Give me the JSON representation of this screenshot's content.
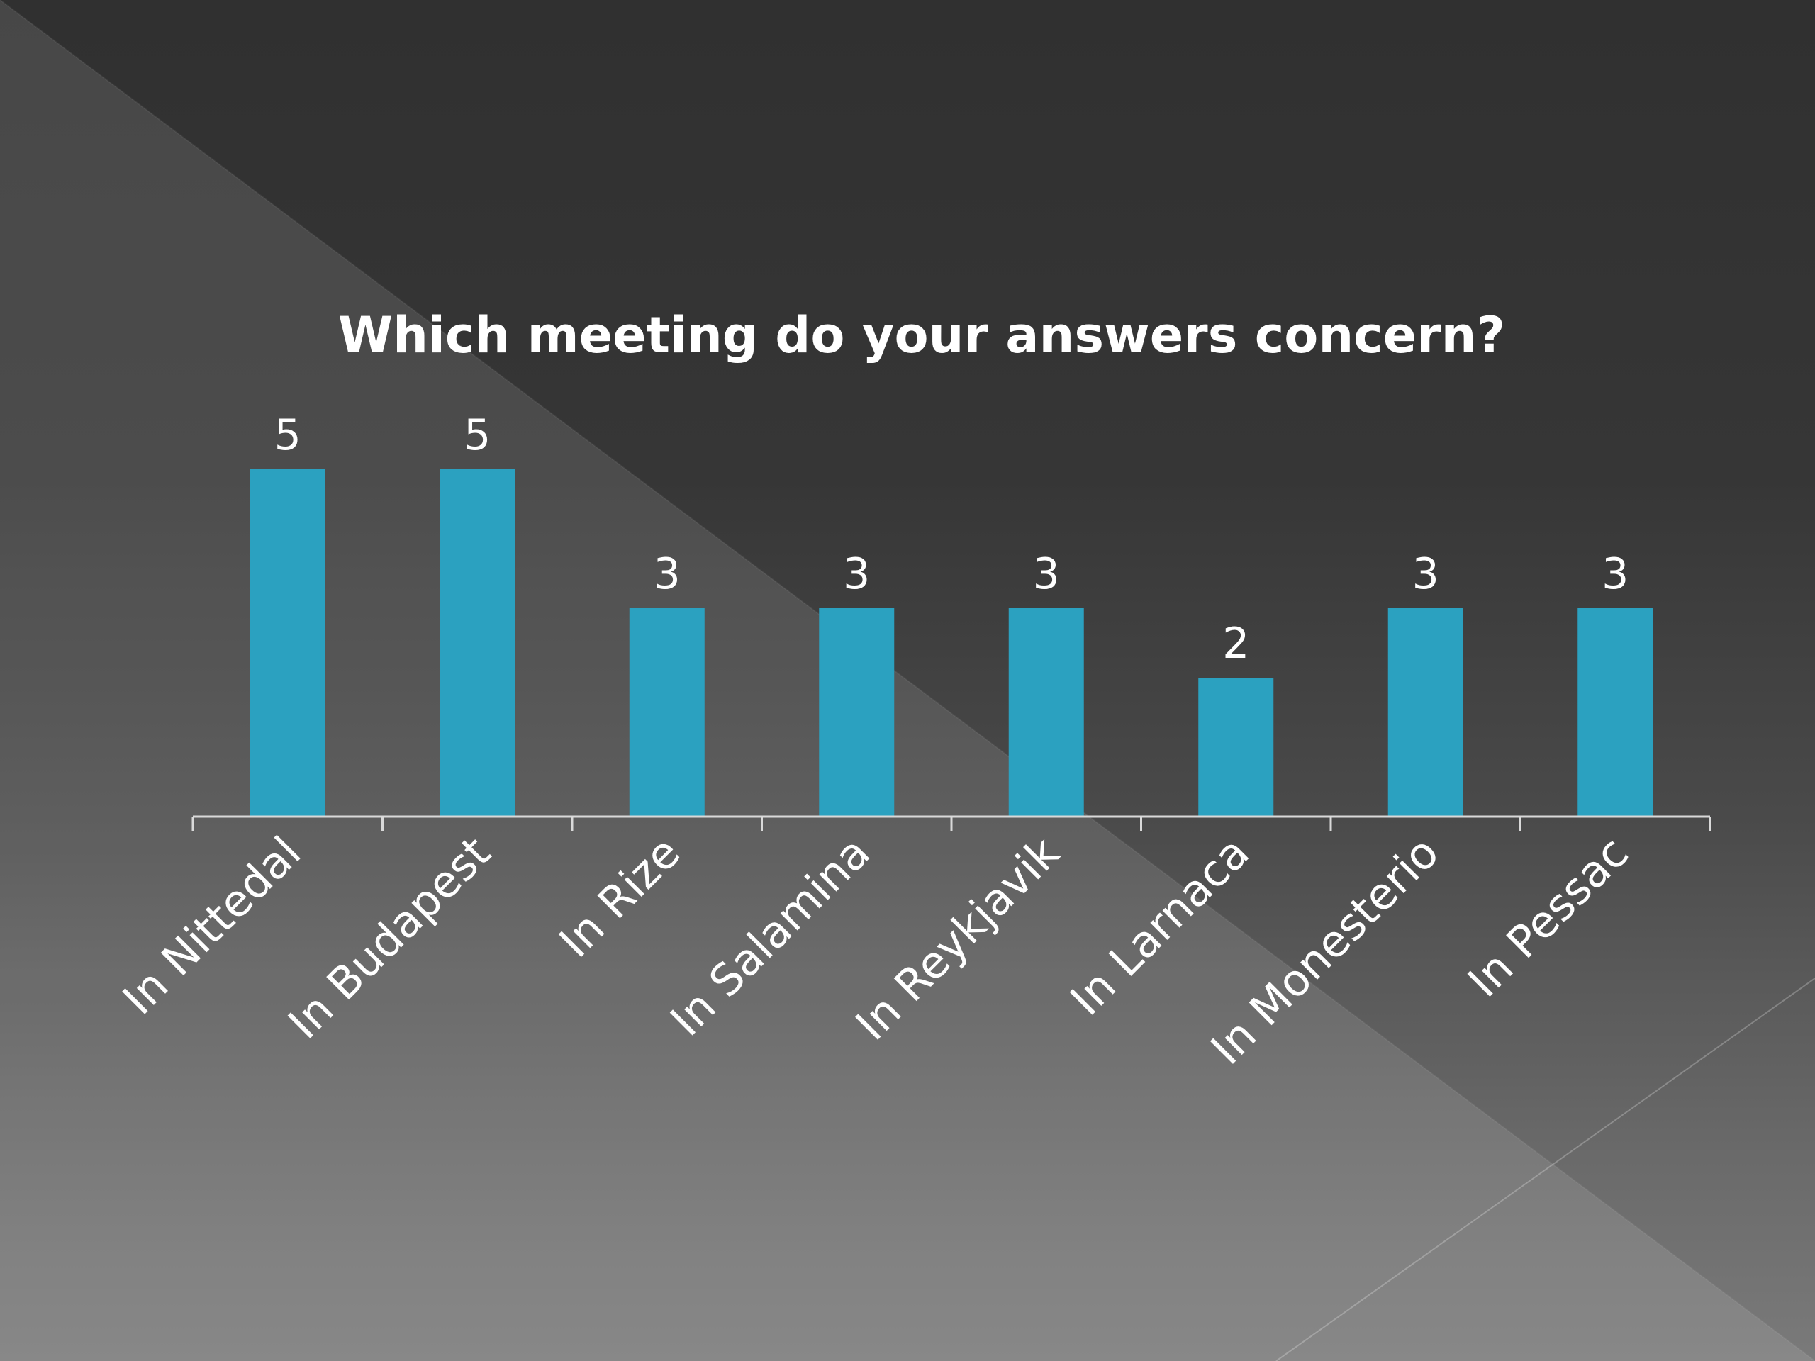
{
  "chart_data": {
    "type": "bar",
    "title": "Which meeting do your answers concern?",
    "categories": [
      "In Nittedal",
      "In Budapest",
      "In Rize",
      "In Salamina",
      "In Reykjavik",
      "In Larnaca",
      "In Monesterio",
      "In Pessac"
    ],
    "values": [
      5,
      5,
      3,
      3,
      3,
      2,
      3,
      3
    ],
    "xlabel": "",
    "ylabel": "",
    "ylim": [
      0,
      5
    ],
    "grid": false,
    "legend": "none",
    "data_labels": true,
    "bar_color": "#2ba1c0"
  }
}
